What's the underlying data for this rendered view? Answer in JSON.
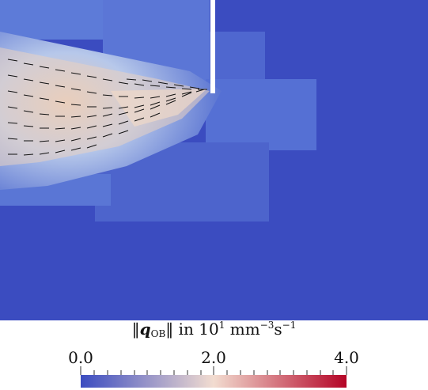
{
  "colorbar": {
    "title_prefix": "‖",
    "title_symbol": "q",
    "title_subscript": "OB",
    "title_mid": "‖ in 10",
    "title_exp1": "1",
    "title_units": " mm",
    "title_exp2": "−3",
    "title_units2": "s",
    "title_exp3": "−1",
    "min_label": "0.0",
    "mid_label": "2.0",
    "max_label": "4.0",
    "colors": [
      "#3b4cc0",
      "#f2dcd0",
      "#b40426"
    ]
  },
  "field": {
    "background_color": "#3b4cc0",
    "crack_color": "#ffffff"
  }
}
